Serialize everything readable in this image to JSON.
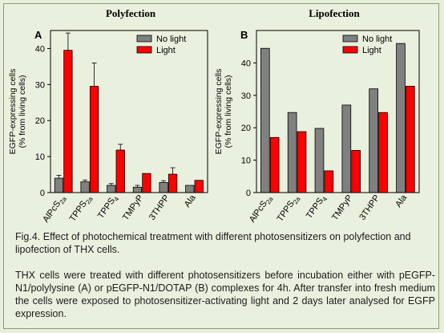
{
  "figure": {
    "caption_title": "Fig.4. Effect of photochemical treatment with different photosensitizers on polyfection and lipofection of THX cells.",
    "caption_body": "THX cells were treated with different photosensitizers before incubation either with pEGFP-N1/polylysine (A) or pEGFP-N1/DOTAP (B) complexes for 4h. After transfer into fresh medium the cells were exposed to photosensitizer-activating light and 2 days later analysed for EGFP expression."
  },
  "colors": {
    "no_light": "#808080",
    "light": "#ff0000",
    "background": "#eaf0de"
  },
  "chart_data": [
    {
      "type": "bar",
      "title": "Polyfection",
      "panel_label": "A",
      "ylabel_line1": "EGFP-expressing cells",
      "ylabel_line2": "(% from living cells)",
      "ylim": [
        0,
        45
      ],
      "yticks": [
        0,
        10,
        20,
        30,
        40
      ],
      "categories": [
        "AlPcS2a",
        "TPPS2a",
        "TPPS4",
        "TMPyP",
        "3THPP",
        "Ala"
      ],
      "category_labels": [
        {
          "main": "AlPcS",
          "sub": "2a"
        },
        {
          "main": "TPPS",
          "sub": "2a"
        },
        {
          "main": "TPPS",
          "sub": "4"
        },
        {
          "main": "TMPyP",
          "sub": ""
        },
        {
          "main": "3THPP",
          "sub": ""
        },
        {
          "main": "Ala",
          "sub": ""
        }
      ],
      "legend_position": "top-right",
      "series": [
        {
          "name": "No light",
          "values": [
            4.0,
            3.0,
            2.0,
            1.5,
            2.8,
            2.0
          ],
          "errors": [
            0.8,
            0.5,
            0.5,
            0.5,
            0.5,
            0
          ]
        },
        {
          "name": "Light",
          "values": [
            39.5,
            29.5,
            11.8,
            5.3,
            5.1,
            3.4
          ],
          "errors": [
            4.8,
            6.5,
            1.6,
            0,
            1.8,
            0
          ]
        }
      ]
    },
    {
      "type": "bar",
      "title": "Lipofection",
      "panel_label": "B",
      "ylabel_line1": "EGFP-expressing cells",
      "ylabel_line2": "(% from living cells)",
      "ylim": [
        0,
        50
      ],
      "yticks": [
        0,
        10,
        20,
        30,
        40
      ],
      "categories": [
        "AlPcS2a",
        "TPPS2a",
        "TPPS4",
        "TMPyP",
        "3THPP",
        "Ala"
      ],
      "category_labels": [
        {
          "main": "AlPcS",
          "sub": "2a"
        },
        {
          "main": "TPPS",
          "sub": "2a"
        },
        {
          "main": "TPPS",
          "sub": "4"
        },
        {
          "main": "TMPyP",
          "sub": ""
        },
        {
          "main": "3THPP",
          "sub": ""
        },
        {
          "main": "Ala",
          "sub": ""
        }
      ],
      "legend_position": "top-right",
      "series": [
        {
          "name": "No light",
          "values": [
            44.5,
            24.7,
            19.8,
            27.0,
            32.0,
            46.0
          ],
          "errors": [
            0,
            0,
            0,
            0,
            0,
            0
          ]
        },
        {
          "name": "Light",
          "values": [
            17.0,
            18.8,
            6.7,
            13.0,
            24.7,
            32.8
          ],
          "errors": [
            0,
            0,
            0,
            0,
            0,
            0
          ]
        }
      ]
    }
  ]
}
